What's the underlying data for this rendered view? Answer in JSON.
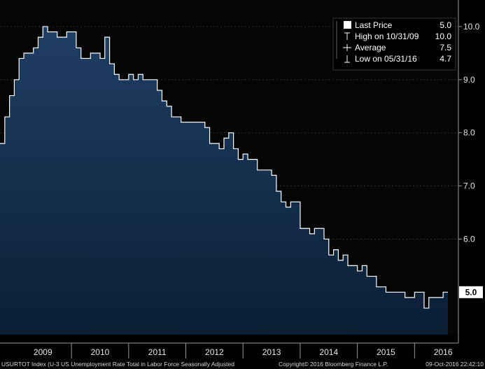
{
  "chart_data": {
    "type": "area",
    "title": "",
    "xlabel": "",
    "ylabel": "",
    "ylim": [
      4.2,
      10.5
    ],
    "y_ticks": [
      "10.0",
      "9.0",
      "8.0",
      "7.0",
      "6.0"
    ],
    "x_categories": [
      "2009",
      "2010",
      "2011",
      "2012",
      "2013",
      "2014",
      "2015",
      "2016"
    ],
    "grid": true,
    "legend_position": "top-right",
    "colors": {
      "fill_top": "#1f3f63",
      "fill_bottom": "#0b1f35",
      "line": "#ffffff",
      "plot_bg": "#050505",
      "grid": "#3a3a3a",
      "badge": "#ffffff"
    },
    "series": [
      {
        "x_start": "2008-10",
        "values": [
          7.8,
          8.3,
          8.7,
          9.0,
          9.4,
          9.5,
          9.5,
          9.6,
          9.8,
          10.0,
          9.9,
          9.9,
          9.8,
          9.8,
          9.9,
          9.9,
          9.6,
          9.4,
          9.4,
          9.5,
          9.5,
          9.4,
          9.8,
          9.3,
          9.1,
          9.0,
          9.0,
          9.1,
          9.0,
          9.1,
          9.0,
          9.0,
          9.0,
          8.8,
          8.6,
          8.5,
          8.3,
          8.3,
          8.2,
          8.2,
          8.2,
          8.2,
          8.2,
          8.1,
          7.8,
          7.8,
          7.7,
          7.9,
          8.0,
          7.7,
          7.5,
          7.6,
          7.5,
          7.5,
          7.3,
          7.3,
          7.3,
          7.2,
          6.9,
          6.7,
          6.6,
          6.7,
          6.7,
          6.2,
          6.2,
          6.1,
          6.2,
          6.2,
          6.0,
          5.7,
          5.8,
          5.6,
          5.7,
          5.5,
          5.5,
          5.4,
          5.5,
          5.3,
          5.3,
          5.1,
          5.1,
          5.0,
          5.0,
          5.0,
          5.0,
          4.9,
          4.9,
          5.0,
          5.0,
          4.7,
          4.9,
          4.9,
          4.9,
          5.0
        ]
      }
    ],
    "last_value_label": "5.0",
    "legend": [
      {
        "label": "Last Price",
        "value": "5.0",
        "marker": "filled-square"
      },
      {
        "label": "High on 10/31/09",
        "value": "10.0",
        "marker": "t-bar"
      },
      {
        "label": "Average",
        "value": "7.5",
        "marker": "dot-line"
      },
      {
        "label": "Low on 05/31/16",
        "value": "4.7",
        "marker": "inverted-t"
      }
    ]
  },
  "footer": {
    "left": "USURTOT Index (U-3 US Unemployment Rate Total in Labor Force Seasonally Adjusted",
    "center": "Copyright© 2016 Bloomberg Finance L.P.",
    "right": "09-Oct-2016 22:42:10"
  }
}
